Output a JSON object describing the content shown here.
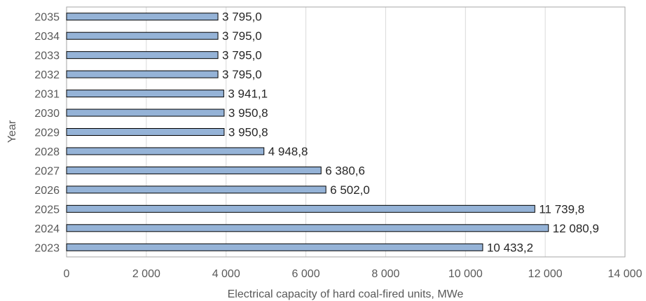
{
  "chart_data": {
    "type": "bar",
    "orientation": "horizontal",
    "title": "",
    "xlabel": "Electrical capacity of hard coal-fired units, MWe",
    "ylabel": "Year",
    "xlim": [
      0,
      14000
    ],
    "xticks": [
      0,
      2000,
      4000,
      6000,
      8000,
      10000,
      12000,
      14000
    ],
    "xtick_labels": [
      "0",
      "2 000",
      "4 000",
      "6 000",
      "8 000",
      "10 000",
      "12 000",
      "14 000"
    ],
    "grid": "vertical",
    "legend": "none",
    "categories": [
      "2035",
      "2034",
      "2033",
      "2032",
      "2031",
      "2030",
      "2029",
      "2028",
      "2027",
      "2026",
      "2025",
      "2024",
      "2023"
    ],
    "values": [
      3795.0,
      3795.0,
      3795.0,
      3795.0,
      3941.1,
      3950.8,
      3950.8,
      4948.8,
      6380.6,
      6502.0,
      11739.8,
      12080.9,
      10433.2
    ],
    "data_labels": [
      "3 795,0",
      "3 795,0",
      "3 795,0",
      "3 795,0",
      "3 941,1",
      "3 950,8",
      "3 950,8",
      "4 948,8",
      "6 380,6",
      "6 502,0",
      "11 739,8",
      "12 080,9",
      "10 433,2"
    ],
    "colors": {
      "bar_fill": "#95B3D7",
      "bar_stroke": "#000000",
      "grid": "#D9D9D9",
      "frame": "#A6A6A6"
    }
  }
}
